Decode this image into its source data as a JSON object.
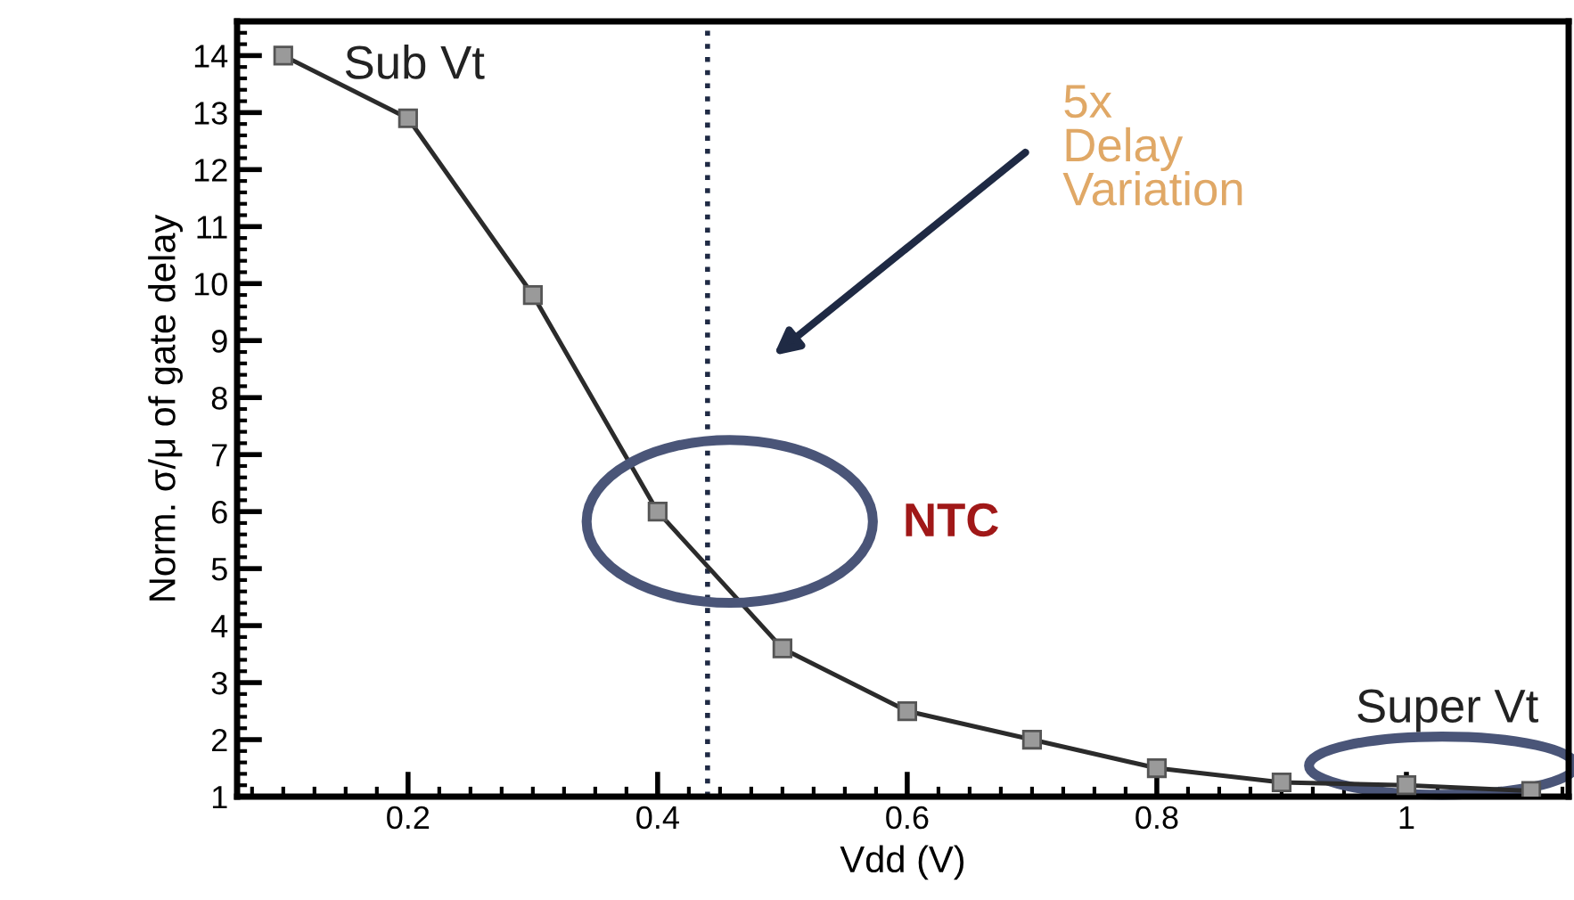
{
  "chart_data": {
    "type": "line",
    "xlabel": "Vdd (V)",
    "ylabel": "Norm. σ/μ of gate delay",
    "x": [
      0.1,
      0.2,
      0.3,
      0.4,
      0.5,
      0.6,
      0.7,
      0.8,
      0.9,
      1.0,
      1.1
    ],
    "series": [
      {
        "color": "#2b2b2b",
        "values": [
          14,
          12.9,
          9.8,
          6.0,
          3.6,
          2.5,
          2.0,
          1.5,
          1.25,
          1.2,
          1.1
        ]
      }
    ],
    "marker": "square",
    "line_style": "solid",
    "xlim": [
      0.063,
      1.13
    ],
    "xticks": [
      0.2,
      0.4,
      0.6,
      0.8,
      1
    ],
    "ylim": [
      1,
      14.6
    ],
    "yticks": [
      1,
      2,
      3,
      4,
      5,
      6,
      7,
      8,
      9,
      10,
      11,
      12,
      13,
      14
    ],
    "ref_lines": [
      {
        "axis": "x",
        "value": 0.44,
        "color": "#1f2a44",
        "line_style": "dotted"
      }
    ],
    "annotations": [
      "Sub Vt",
      "5x\nDelay\nVariation",
      "NTC",
      "Super Vt"
    ],
    "grid": false,
    "legend": false
  }
}
